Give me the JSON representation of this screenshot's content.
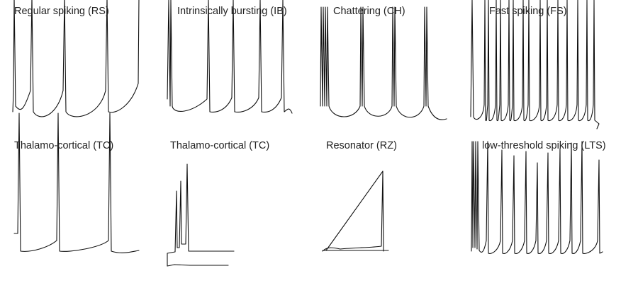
{
  "chart_data": {
    "type": "line",
    "panels": [
      {
        "title": "Regular spiking (RS)"
      },
      {
        "title": "Intrinsically bursting (IB)"
      },
      {
        "title": "Chattering (CH)"
      },
      {
        "title": "Fast spiking (FS)"
      },
      {
        "title": "Thalamo-cortical (TC)"
      },
      {
        "title": "Thalamo-cortical (TC)"
      },
      {
        "title": "Resonator (RZ)"
      },
      {
        "title": "low-threshold spiking (LTS)"
      }
    ],
    "axes": "none",
    "grid": false,
    "trace_color": "#111111"
  }
}
